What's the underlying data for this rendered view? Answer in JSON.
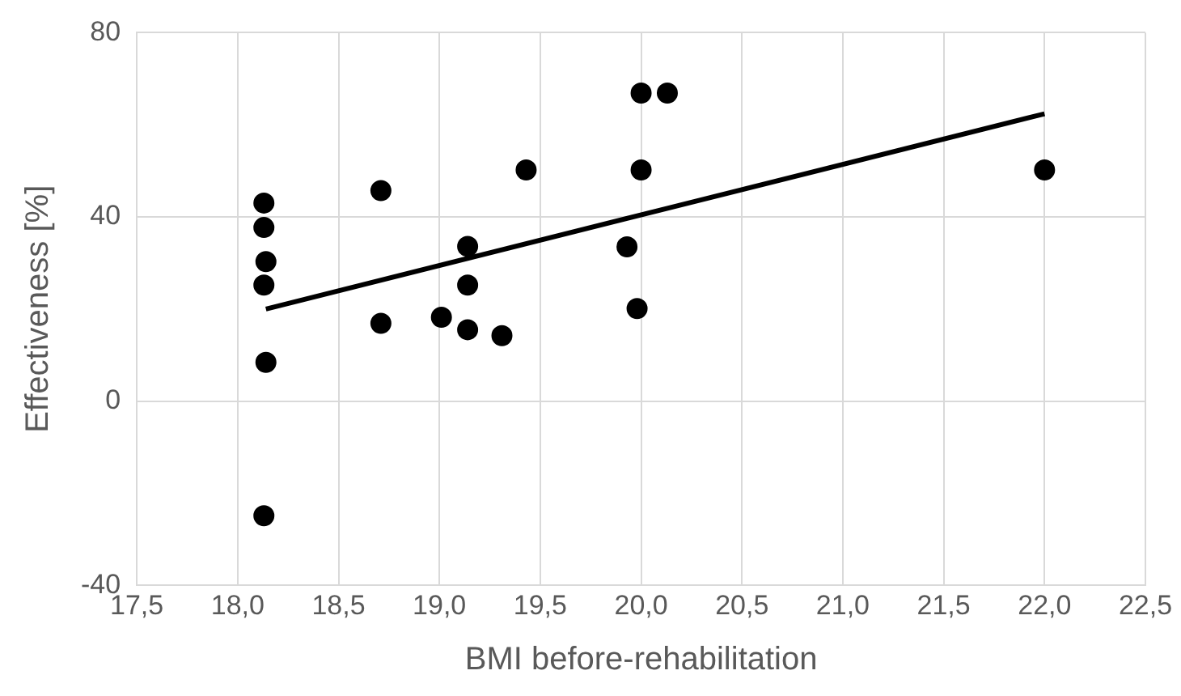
{
  "chart_data": {
    "type": "scatter",
    "xlabel": "BMI before-rehabilitation",
    "ylabel": "Effectiveness [%]",
    "series": [
      {
        "color": "#000000",
        "marker": "circle",
        "x": [
          18.13,
          18.13,
          18.14,
          18.13,
          18.14,
          18.13,
          18.71,
          18.71,
          19.01,
          19.14,
          19.14,
          19.14,
          19.31,
          19.43,
          19.93,
          19.98,
          20.0,
          20.0,
          20.13,
          22.0
        ],
        "values": [
          43,
          37.7,
          30.3,
          25.2,
          8.4,
          -24.9,
          45.7,
          16.9,
          18.2,
          33.6,
          25.2,
          15.5,
          14.2,
          50.2,
          33.5,
          20.1,
          50.2,
          66.9,
          66.9,
          50.2
        ]
      },
      {
        "type": "line",
        "color": "#000000",
        "marker": "none",
        "x": [
          18.14,
          22.0
        ],
        "values": [
          20,
          62.4
        ]
      }
    ],
    "xlim": [
      17.5,
      22.5
    ],
    "xticks": [
      {
        "value": 17.5,
        "label": "17,5"
      },
      {
        "value": 18,
        "label": "18,0"
      },
      {
        "value": 18.5,
        "label": "18,5"
      },
      {
        "value": 19,
        "label": "19,0"
      },
      {
        "value": 19.5,
        "label": "19,5"
      },
      {
        "value": 20,
        "label": "20,0"
      },
      {
        "value": 20.5,
        "label": "20,5"
      },
      {
        "value": 21,
        "label": "21,0"
      },
      {
        "value": 21.5,
        "label": "21,5"
      },
      {
        "value": 22,
        "label": "22,0"
      },
      {
        "value": 22.5,
        "label": "22,5"
      }
    ],
    "ylim": [
      -40,
      80
    ],
    "yticks": [
      -40,
      0,
      40,
      80
    ],
    "grid": true,
    "legend": false
  }
}
